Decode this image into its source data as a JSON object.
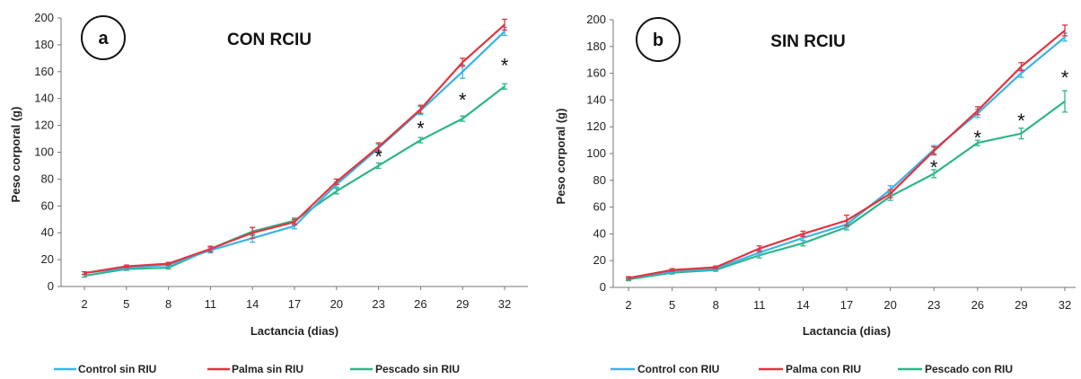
{
  "colors": {
    "control": "#3ab3e6",
    "palma": "#e2343f",
    "pescado": "#2fb58a"
  },
  "chart_data": [
    {
      "type": "line",
      "badge": "a",
      "title": "CON RCIU",
      "xlabel": "Lactancia (dias)",
      "ylabel": "Peso corporal (g)",
      "x": [
        2,
        5,
        8,
        11,
        14,
        17,
        20,
        23,
        26,
        29,
        32
      ],
      "ylim": [
        0,
        200
      ],
      "yticks": [
        "0",
        "20",
        "40",
        "60",
        "80",
        "100",
        "120",
        "140",
        "160",
        "180",
        "200"
      ],
      "xticks": [
        "2",
        "5",
        "8",
        "11",
        "14",
        "17",
        "20",
        "23",
        "26",
        "29",
        "32"
      ],
      "series": [
        {
          "name": "Control sin RIU",
          "color_key": "control",
          "values": [
            10,
            14,
            16,
            27,
            36,
            45,
            76,
            103,
            131,
            160,
            190
          ],
          "err": [
            1,
            1,
            1,
            2,
            3,
            2,
            2,
            3,
            3,
            5,
            3
          ]
        },
        {
          "name": "Palma sin RIU",
          "color_key": "palma",
          "values": [
            10,
            15,
            17,
            28,
            40,
            48,
            78,
            104,
            132,
            167,
            195
          ],
          "err": [
            1,
            1,
            1,
            2,
            4,
            2,
            2,
            3,
            3,
            3,
            4
          ]
        },
        {
          "name": "Pescado sin  RIU",
          "color_key": "pescado",
          "values": [
            8,
            13,
            14,
            28,
            41,
            49,
            71,
            90,
            109,
            125,
            149
          ],
          "err": [
            1,
            1,
            1,
            2,
            3,
            2,
            2,
            2,
            2,
            2,
            2
          ]
        }
      ],
      "annotations": [
        {
          "x": 23,
          "y": 97,
          "text": "*"
        },
        {
          "x": 26,
          "y": 118,
          "text": "*"
        },
        {
          "x": 29,
          "y": 139,
          "text": "*"
        },
        {
          "x": 32,
          "y": 165,
          "text": "*"
        }
      ],
      "legend_position": "bottom",
      "grid": false
    },
    {
      "type": "line",
      "badge": "b",
      "title": "SIN  RCIU",
      "xlabel": "Lactancia (dias)",
      "ylabel": "Peso corporal (g)",
      "x": [
        2,
        5,
        8,
        11,
        14,
        17,
        20,
        23,
        26,
        29,
        32
      ],
      "ylim": [
        0,
        200
      ],
      "yticks": [
        "0",
        "20",
        "40",
        "60",
        "80",
        "100",
        "120",
        "140",
        "160",
        "180",
        "200"
      ],
      "xticks": [
        "2",
        "5",
        "8",
        "11",
        "14",
        "17",
        "20",
        "23",
        "26",
        "29",
        "32"
      ],
      "series": [
        {
          "name": "Control con RIU",
          "color_key": "control",
          "values": [
            7,
            12,
            14,
            26,
            37,
            47,
            73,
            103,
            130,
            160,
            187
          ],
          "err": [
            1,
            1,
            1,
            2,
            2,
            2,
            3,
            3,
            3,
            3,
            3
          ]
        },
        {
          "name": "Palma con RIU",
          "color_key": "palma",
          "values": [
            7,
            13,
            15,
            29,
            40,
            50,
            70,
            102,
            132,
            165,
            192
          ],
          "err": [
            1,
            1,
            1,
            2,
            2,
            4,
            3,
            3,
            3,
            3,
            4
          ]
        },
        {
          "name": "Pescado  con  RIU",
          "color_key": "pescado",
          "values": [
            6,
            11,
            13,
            24,
            33,
            45,
            68,
            85,
            108,
            115,
            139
          ],
          "err": [
            1,
            1,
            1,
            2,
            2,
            2,
            3,
            3,
            2,
            4,
            8
          ]
        }
      ],
      "annotations": [
        {
          "x": 23,
          "y": 90,
          "text": "*"
        },
        {
          "x": 26,
          "y": 112,
          "text": "*"
        },
        {
          "x": 29,
          "y": 125,
          "text": "*"
        },
        {
          "x": 32,
          "y": 157,
          "text": "*"
        }
      ],
      "legend_position": "bottom",
      "grid": false
    }
  ]
}
